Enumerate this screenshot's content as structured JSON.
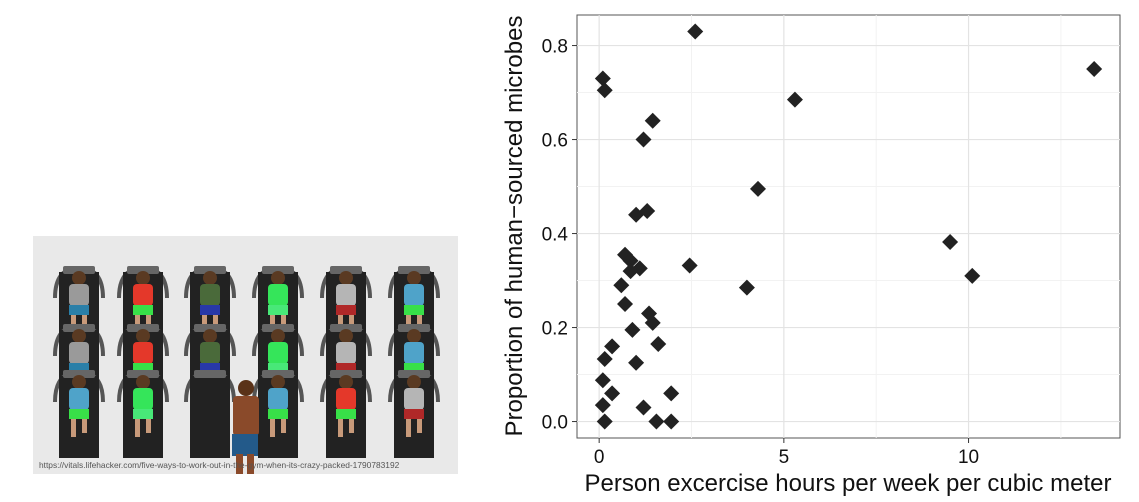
{
  "illustration": {
    "caption": "https://vitals.lifehacker.com/five-ways-to-work-out-in-the-gym-when-its-crazy-packed-1790783192",
    "background_color": "#e9e9e9",
    "treadmill_color": "#222222",
    "runner_shirt_colors": [
      "#9a9a9a",
      "#e4382a",
      "#4a6a3a",
      "#35e55a",
      "#b5b5b5",
      "#4fa3c9"
    ],
    "runner_short_colors": [
      "#2a7fa8",
      "#38e048",
      "#2838a8",
      "#48e878",
      "#b02828",
      "#38e048"
    ]
  },
  "chart_data": {
    "type": "scatter",
    "marker": "diamond",
    "marker_color": "#222222",
    "xlabel": "Person excercise hours per week per cubic meter",
    "ylabel": "Proportion of human−sourced microbes",
    "xlim": [
      -0.6,
      14.1
    ],
    "ylim": [
      -0.035,
      0.865
    ],
    "xticks": [
      0,
      5,
      10
    ],
    "xtick_labels": [
      "0",
      "5",
      "10"
    ],
    "yticks": [
      0.0,
      0.2,
      0.4,
      0.6,
      0.8
    ],
    "ytick_labels": [
      "0.0",
      "0.2",
      "0.4",
      "0.6",
      "0.8"
    ],
    "grid": true,
    "points": [
      {
        "x": 2.6,
        "y": 0.83
      },
      {
        "x": 13.4,
        "y": 0.75
      },
      {
        "x": 0.1,
        "y": 0.73
      },
      {
        "x": 0.15,
        "y": 0.705
      },
      {
        "x": 5.3,
        "y": 0.685
      },
      {
        "x": 1.45,
        "y": 0.64
      },
      {
        "x": 1.2,
        "y": 0.6
      },
      {
        "x": 4.3,
        "y": 0.495
      },
      {
        "x": 1.3,
        "y": 0.448
      },
      {
        "x": 1.0,
        "y": 0.44
      },
      {
        "x": 9.5,
        "y": 0.382
      },
      {
        "x": 0.7,
        "y": 0.355
      },
      {
        "x": 0.85,
        "y": 0.342
      },
      {
        "x": 1.1,
        "y": 0.326
      },
      {
        "x": 0.85,
        "y": 0.32
      },
      {
        "x": 2.45,
        "y": 0.332
      },
      {
        "x": 10.1,
        "y": 0.31
      },
      {
        "x": 0.6,
        "y": 0.29
      },
      {
        "x": 4.0,
        "y": 0.285
      },
      {
        "x": 0.7,
        "y": 0.25
      },
      {
        "x": 1.35,
        "y": 0.23
      },
      {
        "x": 1.45,
        "y": 0.21
      },
      {
        "x": 0.9,
        "y": 0.195
      },
      {
        "x": 1.6,
        "y": 0.165
      },
      {
        "x": 0.35,
        "y": 0.16
      },
      {
        "x": 0.15,
        "y": 0.133
      },
      {
        "x": 1.0,
        "y": 0.125
      },
      {
        "x": 0.1,
        "y": 0.088
      },
      {
        "x": 1.95,
        "y": 0.06
      },
      {
        "x": 0.35,
        "y": 0.06
      },
      {
        "x": 0.1,
        "y": 0.035
      },
      {
        "x": 1.2,
        "y": 0.03
      },
      {
        "x": 0.15,
        "y": 0.0
      },
      {
        "x": 1.55,
        "y": 0.0
      },
      {
        "x": 1.95,
        "y": 0.0
      }
    ]
  }
}
